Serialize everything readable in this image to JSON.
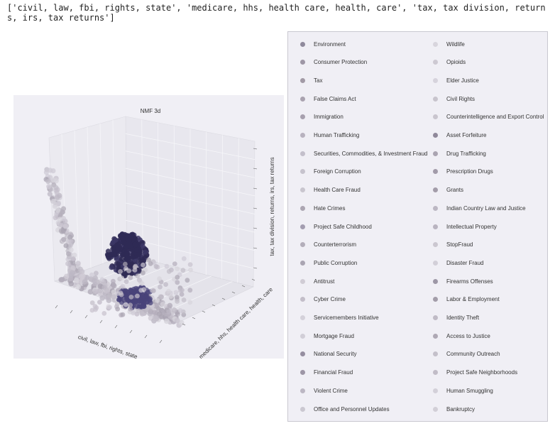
{
  "output_text": "['civil, law, fbi, rights, state', 'medicare, hhs, health care, health, care', 'tax, tax division, returns, irs, tax returns']",
  "chart_data": {
    "type": "scatter",
    "projection": "3d",
    "title": "NMF 3d",
    "xlabel": "civil, law, fbi, rights, state",
    "ylabel": "medicare, hhs, health care, health, care",
    "zlabel": "tax, tax division, returns, irs, tax returns",
    "grid": true,
    "legend_placement": "right",
    "series": [
      {
        "name": "Environment",
        "color": "#8f8a9c"
      },
      {
        "name": "Consumer Protection",
        "color": "#9e97a6"
      },
      {
        "name": "Tax",
        "color": "#a29aa6"
      },
      {
        "name": "False Claims Act",
        "color": "#aaa3b0"
      },
      {
        "name": "Immigration",
        "color": "#a7a0ae"
      },
      {
        "name": "Human Trafficking",
        "color": "#b8b2bf"
      },
      {
        "name": "Securities, Commodities, & Investment Fraud",
        "color": "#c3bfcb"
      },
      {
        "name": "Foreign Corruption",
        "color": "#c6c3cd"
      },
      {
        "name": "Health Care Fraud",
        "color": "#c9c6cf"
      },
      {
        "name": "Hate Crimes",
        "color": "#aca6b2"
      },
      {
        "name": "Project Safe Childhood",
        "color": "#a39db0"
      },
      {
        "name": "Counterterrorism",
        "color": "#b3aeba"
      },
      {
        "name": "Public Corruption",
        "color": "#aaa5b2"
      },
      {
        "name": "Antitrust",
        "color": "#d0ccd5"
      },
      {
        "name": "Cyber Crime",
        "color": "#c3bec9"
      },
      {
        "name": "Servicemembers Initiative",
        "color": "#d4d1da"
      },
      {
        "name": "Mortgage Fraud",
        "color": "#d1ced7"
      },
      {
        "name": "National Security",
        "color": "#958ea0"
      },
      {
        "name": "Financial Fraud",
        "color": "#9d96a6"
      },
      {
        "name": "Violent Crime",
        "color": "#bcb7c3"
      },
      {
        "name": "Office and Personnel Updates",
        "color": "#cbc8d1"
      },
      {
        "name": "Wildlife",
        "color": "#d8d5dd"
      },
      {
        "name": "Opioids",
        "color": "#cdc9d2"
      },
      {
        "name": "Elder Justice",
        "color": "#d6d3dc"
      },
      {
        "name": "Civil Rights",
        "color": "#c8c4cd"
      },
      {
        "name": "Counterintelligence and Export Control",
        "color": "#c9c5ce"
      },
      {
        "name": "Asset Forfeiture",
        "color": "#8f889a"
      },
      {
        "name": "Drug Trafficking",
        "color": "#aaa4b1"
      },
      {
        "name": "Prescription Drugs",
        "color": "#a29ba9"
      },
      {
        "name": "Grants",
        "color": "#a39ca9"
      },
      {
        "name": "Indian Country Law and Justice",
        "color": "#bcb7c3"
      },
      {
        "name": "Intellectual Property",
        "color": "#b9b4c0"
      },
      {
        "name": "StopFraud",
        "color": "#cbc7d0"
      },
      {
        "name": "Disaster Fraud",
        "color": "#d2cfd8"
      },
      {
        "name": "Firearms Offenses",
        "color": "#9d97a6"
      },
      {
        "name": "Labor & Employment",
        "color": "#a39da9"
      },
      {
        "name": "Identity Theft",
        "color": "#c0bbc6"
      },
      {
        "name": "Access to Justice",
        "color": "#aea8b4"
      },
      {
        "name": "Community Outreach",
        "color": "#c4c0ca"
      },
      {
        "name": "Project Safe Neighborhoods",
        "color": "#c1bcc7"
      },
      {
        "name": "Human Smuggling",
        "color": "#d3d0d9"
      },
      {
        "name": "Bankruptcy",
        "color": "#d2cfd7"
      }
    ],
    "point_color_range": [
      "#2f2a55",
      "#d8d5dd"
    ]
  }
}
